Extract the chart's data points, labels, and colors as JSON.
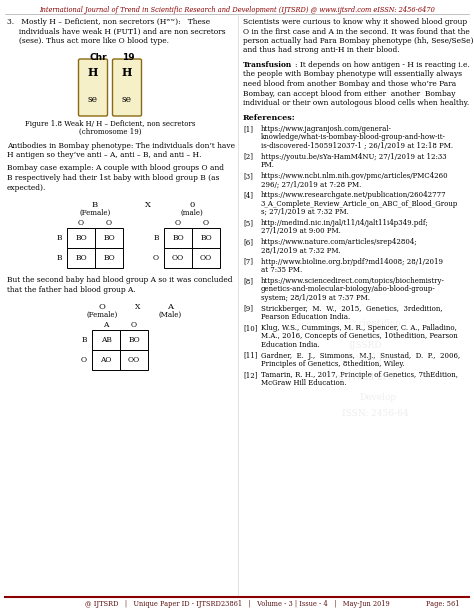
{
  "header_text": "International Journal of Trend in Scientific Research and Development (IJTSRD) @ www.ijtsrd.com eISSN: 2456-6470",
  "footer_line1": "@ IJTSRD   |   Unique Paper ID - IJTSRD23861   |   Volume - 3 | Issue - 4   |   May-Jun 2019",
  "footer_line2": "Page: 561",
  "bg_color": "#ffffff",
  "chr19_color": "#f5f0c8",
  "chr19_border": "#8B6914",
  "table1_cells_left": [
    [
      "BO",
      "BO"
    ],
    [
      "BO",
      "BO"
    ]
  ],
  "table1_cells_right": [
    [
      "BO",
      "BO"
    ],
    [
      "OO",
      "OO"
    ]
  ],
  "table2_cells": [
    [
      "AB",
      "BO"
    ],
    [
      "AO",
      "OO"
    ]
  ],
  "point3_lines": [
    "3.   Mostly H – Deficient, non secretors (Hʷʷ):   These",
    "     individuals have weak H (FUT1) and are non secretors",
    "     (sese). Thus act more like O blood type."
  ],
  "antibodies_lines": [
    "Antibodies in Bombay phenotype: The individuals don’t have",
    "H antigen so they’ve anti – A, anti – B, and anti – H."
  ],
  "bombay_lines": [
    "Bombay case example: A couple with blood groups O and",
    "B respectively had their 1st baby with blood group B (as",
    "expected)."
  ],
  "second_baby_lines": [
    "But the second baby had blood group A so it was concluded",
    "that the father had blood group A."
  ],
  "scientists_lines": [
    "Scientists were curious to know why it showed blood group",
    "O in the first case and A in the second. It was found that the",
    "person actually had Para Bombay phenotype (hh, Sese/SeSe)",
    "and thus had strong anti-H in their blood."
  ],
  "transfusion_cont_lines": [
    ": It depends on how antigen - H is reacting i.e.",
    "the people with Bombay phenotype will essentially always",
    "need blood from another Bombay and those who’re Para",
    "Bombay, can accept blood from either  another  Bombay",
    "individual or their own autologous blood cells when healthy."
  ],
  "references": [
    {
      "num": "[1]",
      "text": "https://www.jagranjosh.com/general-\nknowledge/what-is-bombay-blood-group-and-how-it-\nis-discovered-1505912037-1 ; 26/1/2019 at 12:18 PM."
    },
    {
      "num": "[2]",
      "text": "https://youtu.be/sYa-HamM4NU; 27/1/2019 at 12:33\nPM."
    },
    {
      "num": "[3]",
      "text": "https://www.ncbi.nlm.nih.gov/pmc/articles/PMC4260\n296/; 27/1/2019 at 7:28 PM."
    },
    {
      "num": "[4]",
      "text": "https://www.researchgate.net/publication/26042777\n3_A_Complete_Review_Article_on_ABC_of_Blood_Group\ns; 27/1/2019 at 7:32 PM."
    },
    {
      "num": "[5]",
      "text": "http://medind.nic.in/jal/t11/i4/jalt11i4p349.pdf;\n27/1/2019 at 9:00 PM."
    },
    {
      "num": "[6]",
      "text": "https://www.nature.com/articles/srep42804;\n28/1/2019 at 7:32 PM."
    },
    {
      "num": "[7]",
      "text": "http://www.bioline.org.br/pdf?md14008; 28/1/2019\nat 7:35 PM."
    },
    {
      "num": "[8]",
      "text": "https://www.sciencedirect.com/topics/biochemistry-\ngenetics-and-molecular-biology/abo-blood-group-\nsystem; 28/1/2019 at 7:37 PM."
    },
    {
      "num": "[9]",
      "text": "Strickberger,  M.  W.,  2015,  Genetics,  3rdedition,\nPearson Education India."
    },
    {
      "num": "[10]",
      "text": "Klug, W.S., Cummings, M. R., Spencer, C. A., Palladino,\nM.A., 2016, Concepts of Genetics, 10thedition, Pearson\nEducation India."
    },
    {
      "num": "[11]",
      "text": "Gardner,  E.  J.,  Simmons,  M.J.,  Snustad,  D.  P.,  2006,\nPrinciples of Genetics, 8thedition, Wiley."
    },
    {
      "num": "[12]",
      "text": "Tamarin, R. H., 2017, Principle of Genetics, 7thEdition,\nMcGraw Hill Education."
    }
  ]
}
